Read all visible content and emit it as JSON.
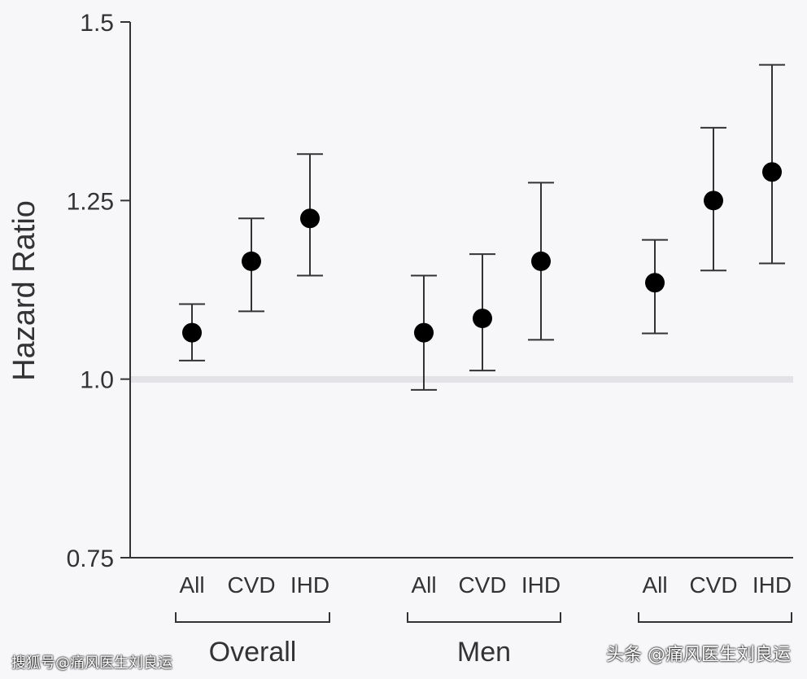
{
  "chart_data": {
    "type": "scatter",
    "ylabel": "Hazard Ratio",
    "ylim": [
      0.75,
      1.5
    ],
    "yticks": [
      "0.75",
      "1.0",
      "1.25",
      "1.5"
    ],
    "reference_line": 1.0,
    "groups": [
      {
        "name": "Overall",
        "points": [
          {
            "category": "All",
            "value": 1.065,
            "lower": 1.026,
            "upper": 1.105
          },
          {
            "category": "CVD",
            "value": 1.165,
            "lower": 1.095,
            "upper": 1.225
          },
          {
            "category": "IHD",
            "value": 1.225,
            "lower": 1.145,
            "upper": 1.315
          }
        ]
      },
      {
        "name": "Men",
        "points": [
          {
            "category": "All",
            "value": 1.065,
            "lower": 0.985,
            "upper": 1.145
          },
          {
            "category": "CVD",
            "value": 1.085,
            "lower": 1.012,
            "upper": 1.175
          },
          {
            "category": "IHD",
            "value": 1.165,
            "lower": 1.055,
            "upper": 1.275
          }
        ]
      },
      {
        "name": "",
        "points": [
          {
            "category": "All",
            "value": 1.135,
            "lower": 1.064,
            "upper": 1.195
          },
          {
            "category": "CVD",
            "value": 1.25,
            "lower": 1.152,
            "upper": 1.352
          },
          {
            "category": "IHD",
            "value": 1.29,
            "lower": 1.162,
            "upper": 1.44
          }
        ]
      }
    ]
  },
  "watermark": {
    "left": "搜狐号@痛风医生刘良运",
    "right": "头条 @痛风医生刘良运"
  }
}
